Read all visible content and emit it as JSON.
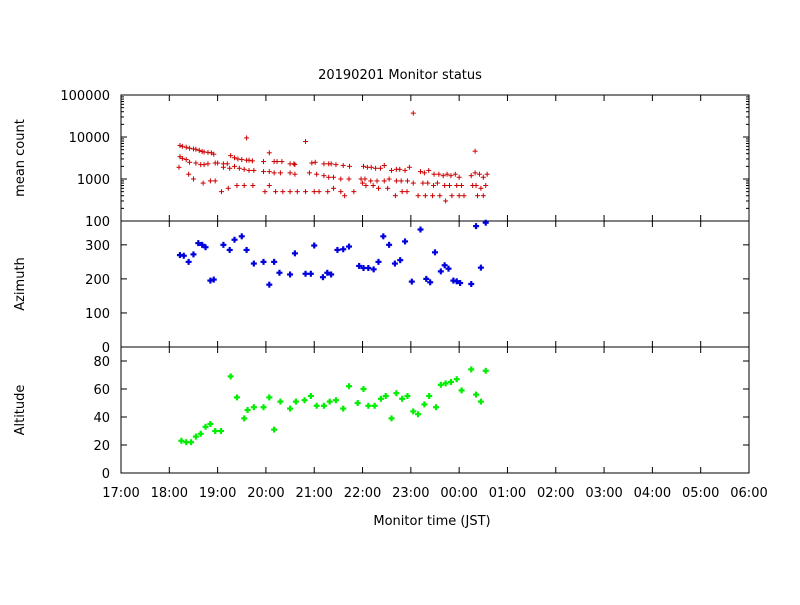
{
  "chart_data": {
    "type": "scatter",
    "title": "20190201 Monitor status",
    "xlabel": "Monitor time (JST)",
    "x_ticks": [
      "17:00",
      "18:00",
      "19:00",
      "20:00",
      "21:00",
      "22:00",
      "23:00",
      "00:00",
      "01:00",
      "02:00",
      "03:00",
      "04:00",
      "05:00",
      "06:00"
    ],
    "x_range_hours": [
      17,
      30
    ],
    "panels": [
      {
        "ylabel": "mean count",
        "scale": "log",
        "ylim": [
          100,
          100000
        ],
        "y_ticks": [
          "100",
          "1000",
          "10000",
          "100000"
        ],
        "y_tick_values": [
          100,
          1000,
          10000,
          100000
        ],
        "color": "#cc0000",
        "series": [
          {
            "x": [
              18.22,
              18.27,
              18.35,
              18.42,
              18.5,
              18.55,
              18.62,
              18.68,
              18.72,
              18.8,
              18.87,
              18.92,
              19.0,
              19.12,
              19.2,
              19.27,
              19.35,
              19.42,
              19.5,
              19.6,
              19.65,
              19.72,
              19.95,
              20.07,
              20.17,
              20.23,
              20.33,
              20.5,
              20.58,
              20.6,
              20.95,
              21.02,
              21.2,
              21.3,
              21.35,
              21.45,
              21.6,
              21.73,
              22.02,
              22.1,
              22.18,
              22.27,
              22.37,
              22.45,
              22.6,
              22.7,
              22.77,
              22.88,
              22.97,
              23.2,
              23.28,
              23.37,
              23.48,
              23.58,
              23.67,
              23.75,
              23.83,
              23.92,
              24.0,
              24.25,
              24.33,
              24.42,
              24.5,
              24.58
            ],
            "y": [
              6300,
              6000,
              5700,
              5400,
              5200,
              5100,
              4800,
              4500,
              4400,
              4300,
              4200,
              3900,
              2400,
              2300,
              2300,
              3600,
              3200,
              3000,
              2900,
              2800,
              2800,
              2700,
              2600,
              4200,
              2600,
              2600,
              2600,
              2300,
              2300,
              2200,
              2400,
              2500,
              2300,
              2300,
              2300,
              2200,
              2100,
              2000,
              2000,
              1900,
              1900,
              1800,
              1800,
              2100,
              1600,
              1700,
              1700,
              1600,
              1900,
              1500,
              1400,
              1600,
              1300,
              1300,
              1200,
              1300,
              1200,
              1300,
              1100,
              1200,
              1400,
              1300,
              1100,
              1300
            ]
          },
          {
            "x": [
              18.22,
              18.27,
              18.35,
              18.42,
              18.55,
              18.65,
              18.72,
              18.8,
              18.95,
              19.12,
              19.25,
              19.35,
              19.45,
              19.55,
              19.65,
              19.75,
              19.95,
              20.07,
              20.17,
              20.3,
              20.5,
              20.6,
              20.9,
              21.05,
              21.2,
              21.3,
              21.4,
              21.55,
              21.72,
              21.97,
              22.05,
              22.17,
              22.3,
              22.45,
              22.55,
              22.7,
              22.8,
              22.93,
              23.05,
              23.25,
              23.35,
              23.47,
              23.55,
              23.7,
              23.8,
              23.95,
              24.05,
              24.28,
              24.35,
              24.45,
              24.55
            ],
            "y": [
              3400,
              3100,
              2900,
              2500,
              2400,
              2200,
              2200,
              2300,
              2400,
              1900,
              1800,
              2000,
              1800,
              1700,
              1600,
              1600,
              1500,
              1500,
              1400,
              1400,
              1400,
              1300,
              1400,
              1300,
              1200,
              1100,
              1100,
              1000,
              1000,
              1000,
              1000,
              900,
              900,
              900,
              1000,
              900,
              900,
              900,
              800,
              800,
              800,
              700,
              800,
              700,
              700,
              700,
              700,
              700,
              700,
              600,
              700
            ]
          },
          {
            "x": [
              18.2,
              18.4,
              18.5,
              18.7,
              18.85,
              18.95,
              19.08,
              19.22,
              19.4,
              19.55,
              19.73,
              19.98,
              20.07,
              20.2,
              20.35,
              20.5,
              20.65,
              20.82,
              21.0,
              21.1,
              21.28,
              21.4,
              21.55,
              21.63,
              21.82,
              22.0,
              22.07,
              22.22,
              22.33,
              22.52,
              22.68,
              22.82,
              22.92,
              23.15,
              23.3,
              23.45,
              23.6,
              23.72,
              23.85,
              24.0,
              24.1,
              24.38,
              24.5
            ],
            "y": [
              1900,
              1300,
              1000,
              800,
              900,
              900,
              500,
              600,
              700,
              700,
              700,
              500,
              700,
              500,
              500,
              500,
              500,
              500,
              500,
              500,
              500,
              600,
              500,
              400,
              500,
              800,
              700,
              700,
              600,
              600,
              400,
              500,
              500,
              400,
              400,
              400,
              400,
              300,
              400,
              400,
              400,
              400,
              400
            ]
          },
          {
            "x": [
              19.6,
              20.82,
              23.05,
              24.33
            ],
            "y": [
              9500,
              7800,
              37000,
              4600
            ]
          }
        ]
      },
      {
        "ylabel": "Azimuth",
        "scale": "linear",
        "ylim": [
          0,
          370
        ],
        "y_ticks": [
          "0",
          "100",
          "200",
          "300"
        ],
        "y_tick_values": [
          0,
          100,
          200,
          300
        ],
        "color": "#0000dd",
        "series": [
          {
            "x": [
              18.22,
              18.3,
              18.4,
              18.5,
              18.6,
              18.68,
              18.75,
              18.85,
              18.92,
              19.12,
              19.25,
              19.35,
              19.5,
              19.6,
              19.75,
              19.95,
              20.07,
              20.17,
              20.28,
              20.5,
              20.6,
              20.82,
              20.93,
              21.0,
              21.18,
              21.27,
              21.35,
              21.48,
              21.6,
              21.72,
              21.93,
              22.02,
              22.12,
              22.23,
              22.33,
              22.43,
              22.55,
              22.67,
              22.78,
              22.88,
              23.02,
              23.2,
              23.32,
              23.4,
              23.5,
              23.62,
              23.7,
              23.78,
              23.88,
              23.95,
              24.02,
              24.25,
              24.35,
              24.45,
              24.55
            ],
            "y": [
              270,
              268,
              250,
              272,
              305,
              300,
              293,
              195,
              198,
              300,
              285,
              315,
              325,
              285,
              245,
              250,
              183,
              250,
              218,
              213,
              275,
              215,
              215,
              298,
              205,
              218,
              213,
              285,
              287,
              295,
              238,
              232,
              232,
              228,
              250,
              325,
              300,
              245,
              255,
              310,
              192,
              345,
              200,
              190,
              278,
              222,
              240,
              230,
              195,
              193,
              188,
              185,
              355,
              233,
              365
            ]
          }
        ]
      },
      {
        "ylabel": "Altitude",
        "scale": "linear",
        "ylim": [
          0,
          90
        ],
        "y_ticks": [
          "0",
          "20",
          "40",
          "60",
          "80"
        ],
        "y_tick_values": [
          0,
          20,
          40,
          60,
          80
        ],
        "color": "#00ee00",
        "series": [
          {
            "x": [
              18.25,
              18.35,
              18.45,
              18.55,
              18.65,
              18.75,
              18.85,
              18.95,
              19.07,
              19.27,
              19.4,
              19.55,
              19.62,
              19.75,
              19.95,
              20.07,
              20.17,
              20.3,
              20.5,
              20.62,
              20.8,
              20.93,
              21.05,
              21.2,
              21.32,
              21.45,
              21.6,
              21.72,
              21.9,
              22.02,
              22.12,
              22.25,
              22.38,
              22.48,
              22.6,
              22.7,
              22.82,
              22.93,
              23.05,
              23.15,
              23.28,
              23.38,
              23.52,
              23.62,
              23.72,
              23.83,
              23.95,
              24.05,
              24.25,
              24.35,
              24.45,
              24.55
            ],
            "y": [
              23,
              22,
              22,
              26,
              28,
              33,
              35,
              30,
              30,
              69,
              54,
              39,
              45,
              47,
              47,
              54,
              31,
              51,
              46,
              51,
              52,
              55,
              48,
              48,
              51,
              52,
              46,
              62,
              50,
              60,
              48,
              48,
              53,
              55,
              39,
              57,
              53,
              55,
              44,
              42,
              49,
              55,
              47,
              63,
              64,
              65,
              67,
              59,
              74,
              56,
              51,
              73
            ]
          }
        ]
      }
    ]
  }
}
